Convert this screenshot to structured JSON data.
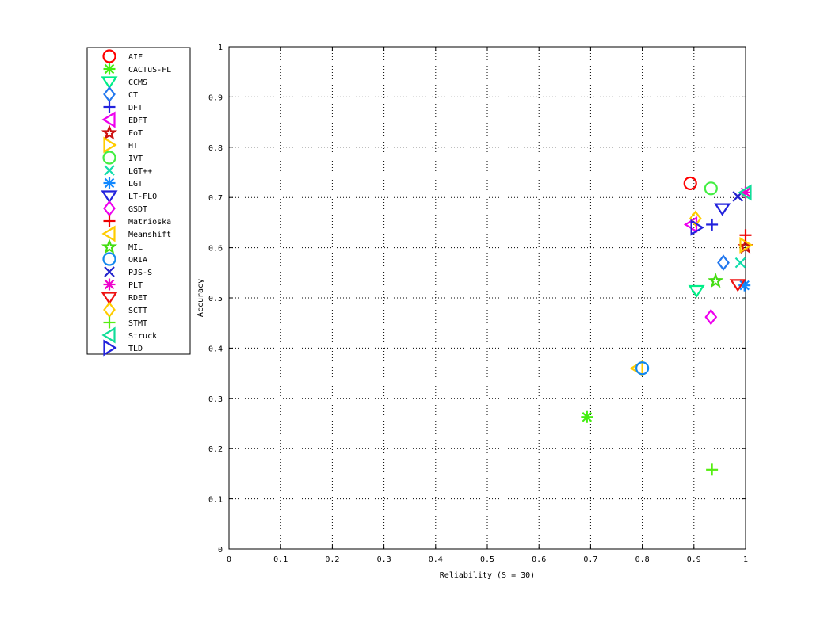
{
  "chart_data": {
    "type": "scatter",
    "title": "",
    "xlabel": "Reliability (S = 30)",
    "ylabel": "Accuracy",
    "xlim": [
      0,
      1
    ],
    "ylim": [
      0,
      1
    ],
    "xticks": [
      "0",
      "0.1",
      "0.2",
      "0.3",
      "0.4",
      "0.5",
      "0.6",
      "0.7",
      "0.8",
      "0.9",
      "1"
    ],
    "yticks": [
      "0",
      "0.1",
      "0.2",
      "0.3",
      "0.4",
      "0.5",
      "0.6",
      "0.7",
      "0.8",
      "0.9",
      "1"
    ],
    "grid": true,
    "legend_position": "outside-left",
    "series": [
      {
        "name": "AIF",
        "marker": "circle",
        "color": "#ff0000",
        "x": 0.893,
        "y": 0.728
      },
      {
        "name": "CACTuS-FL",
        "marker": "asterisk",
        "color": "#44ee11",
        "x": 0.693,
        "y": 0.263
      },
      {
        "name": "CCMS",
        "marker": "triangle-down",
        "color": "#00ee88",
        "x": 0.905,
        "y": 0.515
      },
      {
        "name": "CT",
        "marker": "diamond",
        "color": "#2277ee",
        "x": 0.957,
        "y": 0.57
      },
      {
        "name": "DFT",
        "marker": "plus",
        "color": "#2222dd",
        "x": 0.935,
        "y": 0.646
      },
      {
        "name": "EDFT",
        "marker": "triangle-left",
        "color": "#ee00ee",
        "x": 0.895,
        "y": 0.646
      },
      {
        "name": "FoT",
        "marker": "pentagram",
        "color": "#cc1111",
        "x": 1.0,
        "y": 0.603
      },
      {
        "name": "HT",
        "marker": "triangle-right",
        "color": "#ffcc00",
        "x": 1.0,
        "y": 0.605
      },
      {
        "name": "IVT",
        "marker": "circle",
        "color": "#44ee44",
        "x": 0.933,
        "y": 0.718
      },
      {
        "name": "LGT++",
        "marker": "x",
        "color": "#11ddaa",
        "x": 0.99,
        "y": 0.57
      },
      {
        "name": "LGT",
        "marker": "asterisk",
        "color": "#1188ff",
        "x": 0.998,
        "y": 0.525
      },
      {
        "name": "LT-FLO",
        "marker": "triangle-down",
        "color": "#2222dd",
        "x": 0.955,
        "y": 0.678
      },
      {
        "name": "GSDT",
        "marker": "diamond",
        "color": "#ee00ee",
        "x": 0.933,
        "y": 0.462
      },
      {
        "name": "Matrioska",
        "marker": "plus",
        "color": "#ee0000",
        "x": 1.0,
        "y": 0.625
      },
      {
        "name": "Meanshift",
        "marker": "triangle-left",
        "color": "#ffcc00",
        "x": 0.79,
        "y": 0.36
      },
      {
        "name": "MIL",
        "marker": "pentagram",
        "color": "#44dd11",
        "x": 0.942,
        "y": 0.535
      },
      {
        "name": "ORIA",
        "marker": "circle",
        "color": "#1188ee",
        "x": 0.8,
        "y": 0.36
      },
      {
        "name": "PJS-S",
        "marker": "x",
        "color": "#2222cc",
        "x": 0.985,
        "y": 0.702
      },
      {
        "name": "PLT",
        "marker": "asterisk",
        "color": "#ee00cc",
        "x": 1.0,
        "y": 0.71
      },
      {
        "name": "RDET",
        "marker": "triangle-down",
        "color": "#ee1111",
        "x": 0.985,
        "y": 0.527
      },
      {
        "name": "SCTT",
        "marker": "diamond",
        "color": "#ffcc00",
        "x": 0.903,
        "y": 0.658
      },
      {
        "name": "STMT",
        "marker": "plus",
        "color": "#55ee11",
        "x": 0.935,
        "y": 0.158
      },
      {
        "name": "Struck",
        "marker": "triangle-left",
        "color": "#11dd99",
        "x": 1.0,
        "y": 0.71
      },
      {
        "name": "TLD",
        "marker": "triangle-right",
        "color": "#2222dd",
        "x": 0.905,
        "y": 0.64
      }
    ]
  }
}
